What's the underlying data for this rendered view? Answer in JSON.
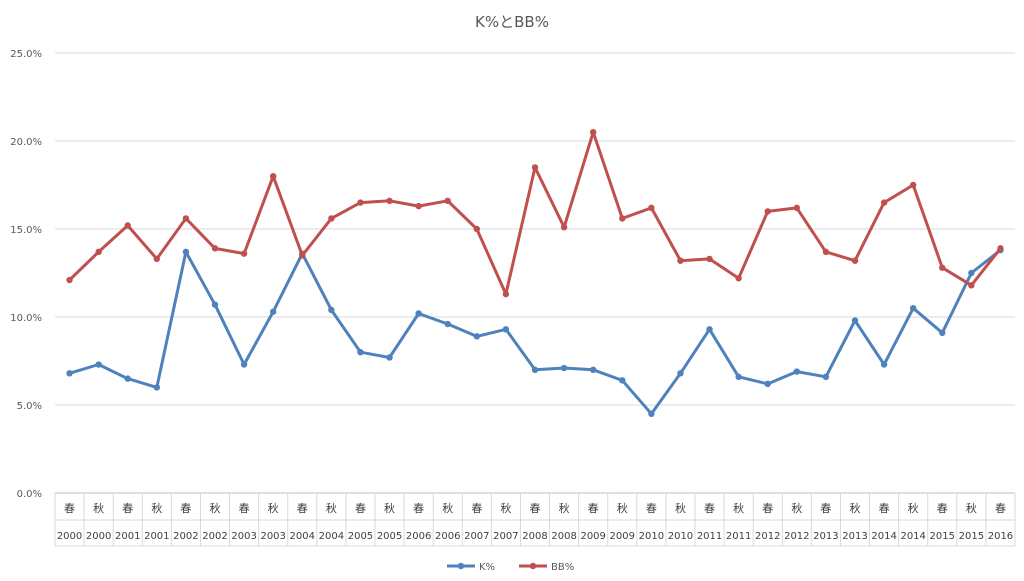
{
  "chart_data": {
    "type": "line",
    "title": "K%とBB%",
    "xlabel": "",
    "ylabel": "",
    "ylim": [
      0,
      25
    ],
    "yticks": [
      "0.0%",
      "5.0%",
      "10.0%",
      "15.0%",
      "20.0%",
      "25.0%"
    ],
    "ytick_values": [
      0,
      5,
      10,
      15,
      20,
      25
    ],
    "grid": true,
    "legend": "bottom",
    "categories": [
      {
        "season": "春",
        "year": "2000"
      },
      {
        "season": "秋",
        "year": "2000"
      },
      {
        "season": "春",
        "year": "2001"
      },
      {
        "season": "秋",
        "year": "2001"
      },
      {
        "season": "春",
        "year": "2002"
      },
      {
        "season": "秋",
        "year": "2002"
      },
      {
        "season": "春",
        "year": "2003"
      },
      {
        "season": "秋",
        "year": "2003"
      },
      {
        "season": "春",
        "year": "2004"
      },
      {
        "season": "秋",
        "year": "2004"
      },
      {
        "season": "春",
        "year": "2005"
      },
      {
        "season": "秋",
        "year": "2005"
      },
      {
        "season": "春",
        "year": "2006"
      },
      {
        "season": "秋",
        "year": "2006"
      },
      {
        "season": "春",
        "year": "2007"
      },
      {
        "season": "秋",
        "year": "2007"
      },
      {
        "season": "春",
        "year": "2008"
      },
      {
        "season": "秋",
        "year": "2008"
      },
      {
        "season": "春",
        "year": "2009"
      },
      {
        "season": "秋",
        "year": "2009"
      },
      {
        "season": "春",
        "year": "2010"
      },
      {
        "season": "秋",
        "year": "2010"
      },
      {
        "season": "春",
        "year": "2011"
      },
      {
        "season": "秋",
        "year": "2011"
      },
      {
        "season": "春",
        "year": "2012"
      },
      {
        "season": "秋",
        "year": "2012"
      },
      {
        "season": "春",
        "year": "2013"
      },
      {
        "season": "秋",
        "year": "2013"
      },
      {
        "season": "春",
        "year": "2014"
      },
      {
        "season": "秋",
        "year": "2014"
      },
      {
        "season": "春",
        "year": "2015"
      },
      {
        "season": "秋",
        "year": "2015"
      },
      {
        "season": "春",
        "year": "2016"
      }
    ],
    "series": [
      {
        "name": "K%",
        "color": "#4f81bd",
        "values": [
          6.8,
          7.3,
          6.5,
          6.0,
          13.7,
          10.7,
          7.3,
          10.3,
          13.6,
          10.4,
          8.0,
          7.7,
          10.2,
          9.6,
          8.9,
          9.3,
          7.0,
          7.1,
          7.0,
          6.4,
          4.5,
          6.8,
          9.3,
          6.6,
          6.2,
          6.9,
          6.6,
          9.8,
          7.3,
          10.5,
          9.1,
          12.5,
          13.8
        ]
      },
      {
        "name": "BB%",
        "color": "#c0504d",
        "values": [
          12.1,
          13.7,
          15.2,
          13.3,
          15.6,
          13.9,
          13.6,
          18.0,
          13.5,
          15.6,
          16.5,
          16.6,
          16.3,
          16.6,
          15.0,
          11.3,
          18.5,
          15.1,
          20.5,
          15.6,
          16.2,
          13.2,
          13.3,
          12.2,
          16.0,
          16.2,
          13.7,
          13.2,
          16.5,
          17.5,
          12.8,
          11.8,
          13.9
        ]
      }
    ]
  }
}
